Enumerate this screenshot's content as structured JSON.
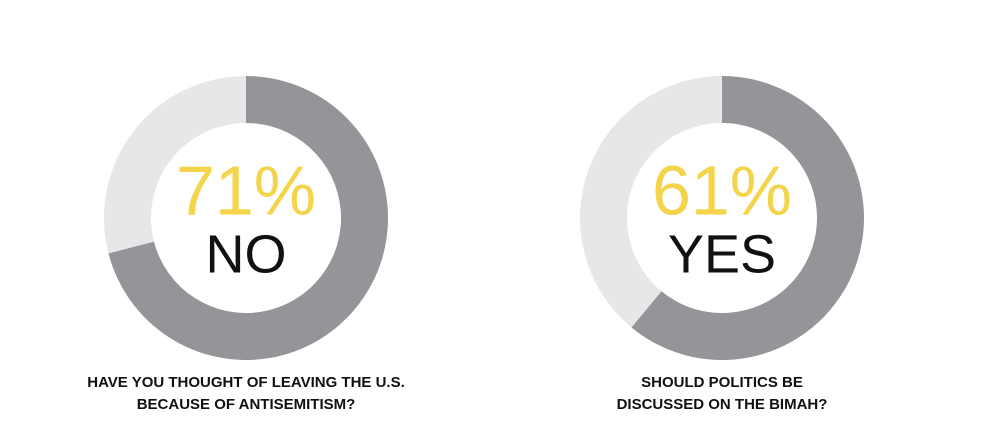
{
  "chart_data": [
    {
      "type": "donut",
      "title": [
        "HAVE YOU THOUGHT OF LEAVING THE U.S.",
        "BECAUSE OF ANTISEMITISM?"
      ],
      "categories": [
        "NO",
        null
      ],
      "values": [
        71,
        29
      ],
      "value_labels": [
        "71%",
        null
      ],
      "colors": [
        "#939598",
        "#e6e7e8"
      ],
      "label_color": "#f3d44a"
    },
    {
      "type": "donut",
      "title": [
        "SHOULD POLITICS BE",
        "DISCUSSED ON THE BIMAH?"
      ],
      "categories": [
        "YES",
        null
      ],
      "values": [
        61,
        39
      ],
      "value_labels": [
        "61%",
        null
      ],
      "colors": [
        "#939598",
        "#e6e7e8"
      ],
      "label_color": "#f3d44a"
    }
  ]
}
